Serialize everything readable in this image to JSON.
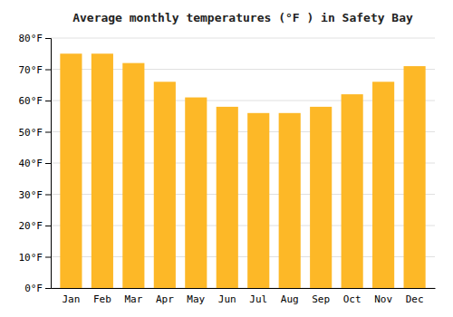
{
  "chart_data": {
    "type": "bar",
    "title": "Average monthly temperatures (°F ) in Safety Bay",
    "categories": [
      "Jan",
      "Feb",
      "Mar",
      "Apr",
      "May",
      "Jun",
      "Jul",
      "Aug",
      "Sep",
      "Oct",
      "Nov",
      "Dec"
    ],
    "values": [
      75,
      75,
      72,
      66,
      61,
      58,
      56,
      56,
      58,
      62,
      66,
      71
    ],
    "color": "#FDB827",
    "ylim": [
      0,
      80
    ],
    "yticks": [
      {
        "value": 0,
        "label": "0°F"
      },
      {
        "value": 10,
        "label": "10°F"
      },
      {
        "value": 20,
        "label": "20°F"
      },
      {
        "value": 30,
        "label": "30°F"
      },
      {
        "value": 40,
        "label": "40°F"
      },
      {
        "value": 50,
        "label": "50°F"
      },
      {
        "value": 60,
        "label": "60°F"
      },
      {
        "value": 70,
        "label": "70°F"
      },
      {
        "value": 80,
        "label": "80°F"
      }
    ],
    "grid": true
  }
}
